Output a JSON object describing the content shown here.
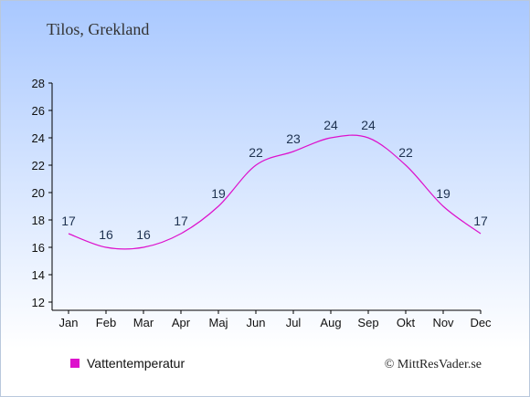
{
  "chart_data": {
    "type": "line",
    "title": "Tilos, Grekland",
    "categories": [
      "Jan",
      "Feb",
      "Mar",
      "Apr",
      "Maj",
      "Jun",
      "Jul",
      "Aug",
      "Sep",
      "Okt",
      "Nov",
      "Dec"
    ],
    "series": [
      {
        "name": "Vattentemperatur",
        "values": [
          17,
          16,
          16,
          17,
          19,
          22,
          23,
          24,
          24,
          22,
          19,
          17
        ],
        "color": "#dd11cc"
      }
    ],
    "ylim": [
      12,
      28
    ],
    "yticks": [
      12,
      14,
      16,
      18,
      20,
      22,
      24,
      26,
      28
    ],
    "grid": false,
    "legend_position": "bottom-left"
  },
  "credit": "© MittResVader.se",
  "colors": {
    "line": "#dd11cc",
    "axis": "#000000",
    "label": "#1e3250",
    "title": "#333333"
  }
}
